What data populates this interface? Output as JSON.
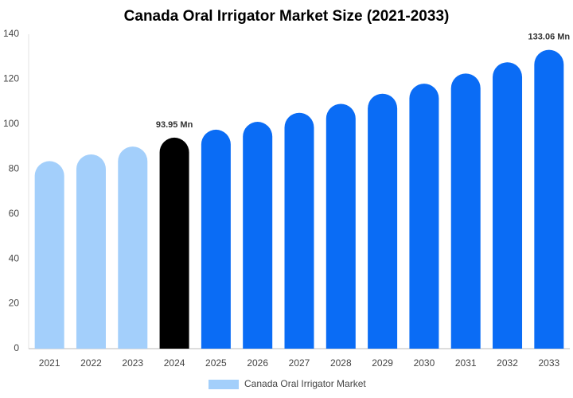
{
  "chart_data": {
    "type": "bar",
    "title": "Canada Oral Irrigator Market Size (2021-2033)",
    "categories": [
      "2021",
      "2022",
      "2023",
      "2024",
      "2025",
      "2026",
      "2027",
      "2028",
      "2029",
      "2030",
      "2031",
      "2032",
      "2033"
    ],
    "series": [
      {
        "name": "Canada Oral Irrigator Market",
        "color": "#a3cffb",
        "values": [
          83.5,
          86.5,
          90,
          93.95,
          97.5,
          101,
          105,
          109,
          113.5,
          118,
          122.5,
          127.5,
          133.06
        ],
        "value_labels": [
          null,
          null,
          null,
          "93.95 Mn",
          null,
          null,
          null,
          null,
          null,
          null,
          null,
          null,
          "133.06 Mn"
        ]
      }
    ],
    "bar_colors": [
      "#a3cffb",
      "#a3cffb",
      "#a3cffb",
      "#000000",
      "#0a6cf5",
      "#0a6cf5",
      "#0a6cf5",
      "#0a6cf5",
      "#0a6cf5",
      "#0a6cf5",
      "#0a6cf5",
      "#0a6cf5",
      "#0a6cf5"
    ],
    "ylim": [
      0,
      140
    ],
    "yticks": [
      0,
      20,
      40,
      60,
      80,
      100,
      120,
      140
    ],
    "grid": false,
    "legend": "bottom"
  }
}
